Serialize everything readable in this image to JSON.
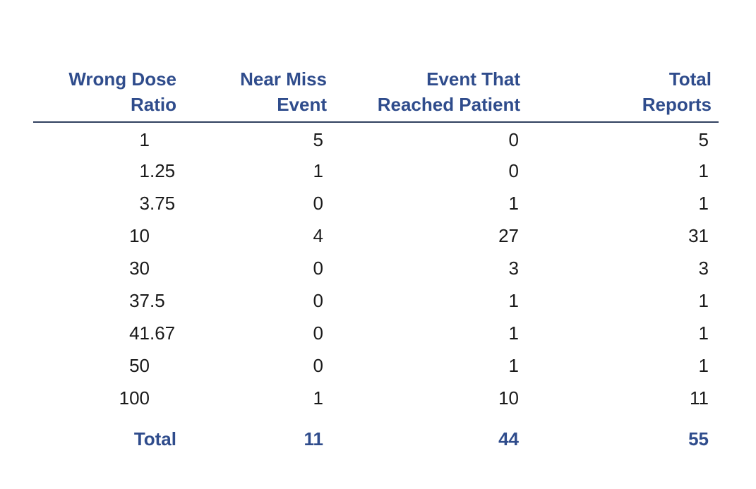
{
  "colors": {
    "header_blue": "#2F4C8C",
    "rule_color": "#31405F",
    "body_text": "#1a1a1a",
    "background": "#ffffff"
  },
  "chart_data": {
    "type": "table",
    "title": "",
    "columns": [
      "Wrong Dose Ratio",
      "Near Miss Event",
      "Event That Reached Patient",
      "Total Reports"
    ],
    "rows": [
      [
        1,
        5,
        0,
        5
      ],
      [
        1.25,
        1,
        0,
        1
      ],
      [
        3.75,
        0,
        1,
        1
      ],
      [
        10,
        4,
        27,
        31
      ],
      [
        30,
        0,
        3,
        3
      ],
      [
        37.5,
        0,
        1,
        1
      ],
      [
        41.67,
        0,
        1,
        1
      ],
      [
        50,
        0,
        1,
        1
      ],
      [
        100,
        1,
        10,
        11
      ]
    ],
    "totals_row": [
      "Total",
      11,
      44,
      55
    ]
  },
  "table": {
    "headers": [
      {
        "line1": "Wrong Dose",
        "line2": "Ratio"
      },
      {
        "line1": "Near Miss",
        "line2": "Event"
      },
      {
        "line1": "Event That",
        "line2": "Reached Patient"
      },
      {
        "line1": "Total",
        "line2": "Reports"
      }
    ],
    "rows": [
      {
        "ratio_int": "1",
        "ratio_frac": "",
        "near_miss": "5",
        "reached": "0",
        "total": "5"
      },
      {
        "ratio_int": "1",
        "ratio_frac": ".25",
        "near_miss": "1",
        "reached": "0",
        "total": "1"
      },
      {
        "ratio_int": "3",
        "ratio_frac": ".75",
        "near_miss": "0",
        "reached": "1",
        "total": "1"
      },
      {
        "ratio_int": "10",
        "ratio_frac": "",
        "near_miss": "4",
        "reached": "27",
        "total": "31"
      },
      {
        "ratio_int": "30",
        "ratio_frac": "",
        "near_miss": "0",
        "reached": "3",
        "total": "3"
      },
      {
        "ratio_int": "37",
        "ratio_frac": ".5",
        "near_miss": "0",
        "reached": "1",
        "total": "1"
      },
      {
        "ratio_int": "41",
        "ratio_frac": ".67",
        "near_miss": "0",
        "reached": "1",
        "total": "1"
      },
      {
        "ratio_int": "50",
        "ratio_frac": "",
        "near_miss": "0",
        "reached": "1",
        "total": "1"
      },
      {
        "ratio_int": "100",
        "ratio_frac": "",
        "near_miss": "1",
        "reached": "10",
        "total": "11"
      }
    ],
    "total_row": {
      "label": "Total",
      "near_miss": "11",
      "reached": "44",
      "total": "55"
    }
  }
}
